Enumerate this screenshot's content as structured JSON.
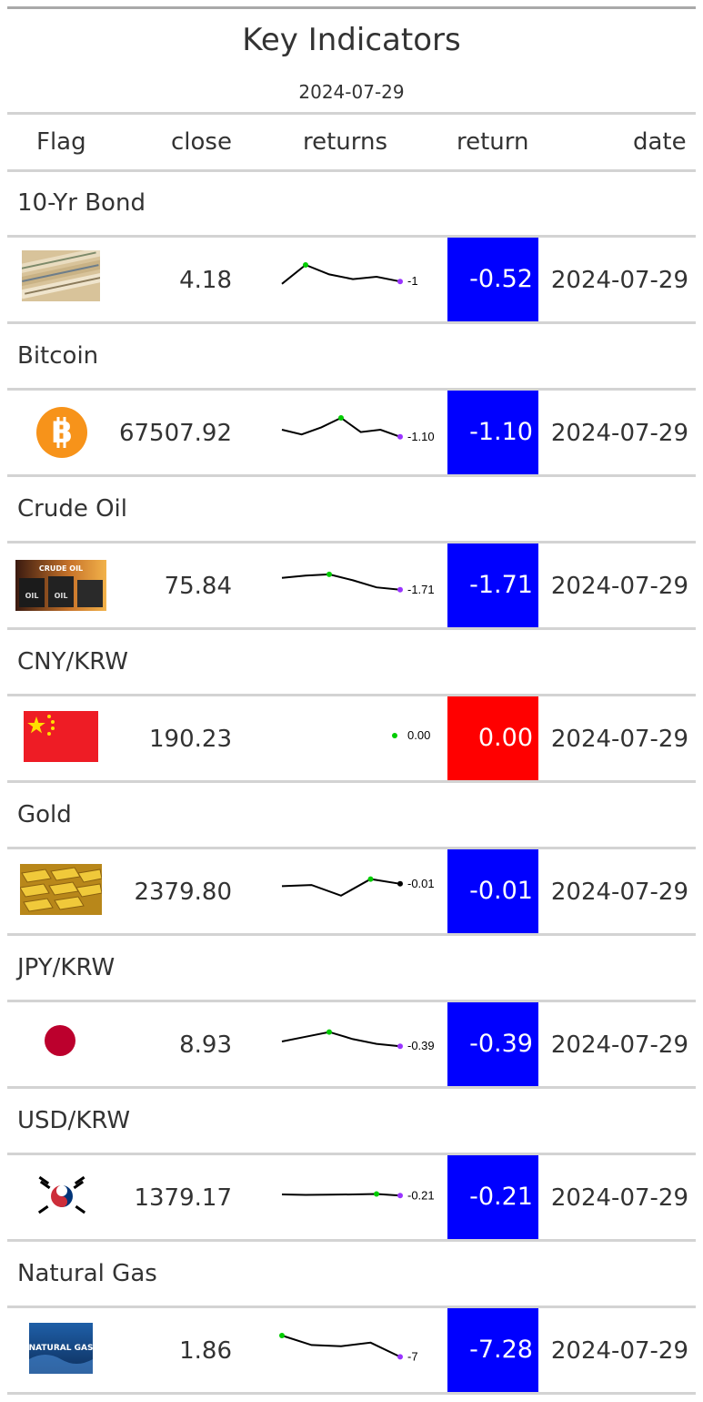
{
  "title": "Key Indicators",
  "subtitle": "2024-07-29",
  "columns": {
    "flag": "Flag",
    "close": "close",
    "returns": "returns",
    "return": "return",
    "date": "date"
  },
  "colors": {
    "negative": "#0000ff",
    "nonnegative": "#ff0000",
    "spark_max": "#00cc00",
    "spark_last_down": "#9933ff",
    "spark_line": "#000000"
  },
  "rows": [
    {
      "group": "10-Yr Bond",
      "icon": "bond-certificate-image",
      "close": "4.18",
      "spark_label": "-1",
      "spark": [
        0.2,
        1,
        0.6,
        0.4,
        0.5,
        0.3
      ],
      "ret": "-0.52",
      "ret_value": -0.52,
      "date": "2024-07-29"
    },
    {
      "group": "Bitcoin",
      "icon": "bitcoin-logo",
      "close": "67507.92",
      "spark_label": "-1.10",
      "spark": [
        0.5,
        0.3,
        0.6,
        1,
        0.4,
        0.5,
        0.2
      ],
      "ret": "-1.10",
      "ret_value": -1.1,
      "date": "2024-07-29"
    },
    {
      "group": "Crude Oil",
      "icon": "crude-oil-barrels-image",
      "close": "75.84",
      "spark_label": "-1.71",
      "spark": [
        0.7,
        0.8,
        0.85,
        0.6,
        0.3,
        0.2
      ],
      "ret": "-1.71",
      "ret_value": -1.71,
      "date": "2024-07-29"
    },
    {
      "group": "CNY/KRW",
      "icon": "china-flag",
      "close": "190.23",
      "spark_label": "0.00",
      "spark": [
        0.5
      ],
      "ret": "0.00",
      "ret_value": 0.0,
      "date": "2024-07-29"
    },
    {
      "group": "Gold",
      "icon": "gold-bars-image",
      "close": "2379.80",
      "spark_label": "-0.01",
      "spark": [
        0.6,
        0.65,
        0.2,
        0.9,
        0.7
      ],
      "ret": "-0.01",
      "ret_value": -0.01,
      "date": "2024-07-29"
    },
    {
      "group": "JPY/KRW",
      "icon": "japan-flag",
      "close": "8.93",
      "spark_label": "-0.39",
      "spark": [
        0.5,
        0.7,
        0.9,
        0.6,
        0.4,
        0.3
      ],
      "ret": "-0.39",
      "ret_value": -0.39,
      "date": "2024-07-29"
    },
    {
      "group": "USD/KRW",
      "icon": "korea-flag",
      "close": "1379.17",
      "spark_label": "-0.21",
      "spark": [
        0.5,
        0.48,
        0.49,
        0.5,
        0.52,
        0.45
      ],
      "ret": "-0.21",
      "ret_value": -0.21,
      "date": "2024-07-29"
    },
    {
      "group": "Natural Gas",
      "icon": "natural-gas-image",
      "close": "1.86",
      "spark_label": "-7",
      "spark": [
        1,
        0.6,
        0.55,
        0.7,
        0.1
      ],
      "ret": "-7.28",
      "ret_value": -7.28,
      "date": "2024-07-29"
    }
  ],
  "image_texts": {
    "oil": "CRUDE OIL",
    "gas": "NATURAL GAS"
  }
}
